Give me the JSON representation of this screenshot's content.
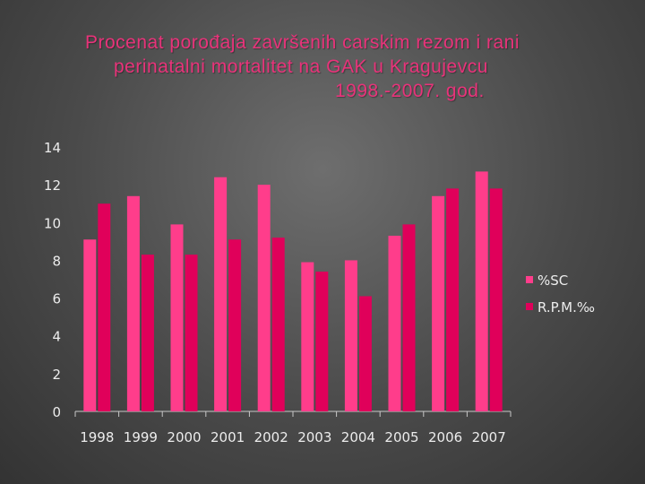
{
  "slide": {
    "title_lines": [
      "Procenat porođaja završenih carskim rezom i rani",
      "perinatalni mortalitet na GAK u Kragujevcu",
      "1998.-2007. god."
    ]
  },
  "colors": {
    "sc": "#ff3d8b",
    "rpm": "#e0005a",
    "text": "#ececec",
    "axis": "#c8c8c8",
    "title": "#e8337a"
  },
  "chart_data": {
    "type": "bar",
    "categories": [
      "1998",
      "1999",
      "2000",
      "2001",
      "2002",
      "2003",
      "2004",
      "2005",
      "2006",
      "2007"
    ],
    "series": [
      {
        "name": "%SC",
        "values": [
          9.1,
          11.4,
          9.9,
          12.4,
          12.0,
          7.9,
          8.0,
          9.3,
          11.4,
          12.7
        ]
      },
      {
        "name": "R.P.M.‰",
        "values": [
          11.0,
          8.3,
          8.3,
          9.1,
          9.2,
          7.4,
          6.1,
          9.9,
          11.8,
          11.8
        ]
      }
    ],
    "ylim": [
      0,
      14
    ],
    "yticks": [
      "0",
      "2",
      "4",
      "6",
      "8",
      "10",
      "12",
      "14"
    ],
    "grid": false,
    "legend_position": "right"
  }
}
